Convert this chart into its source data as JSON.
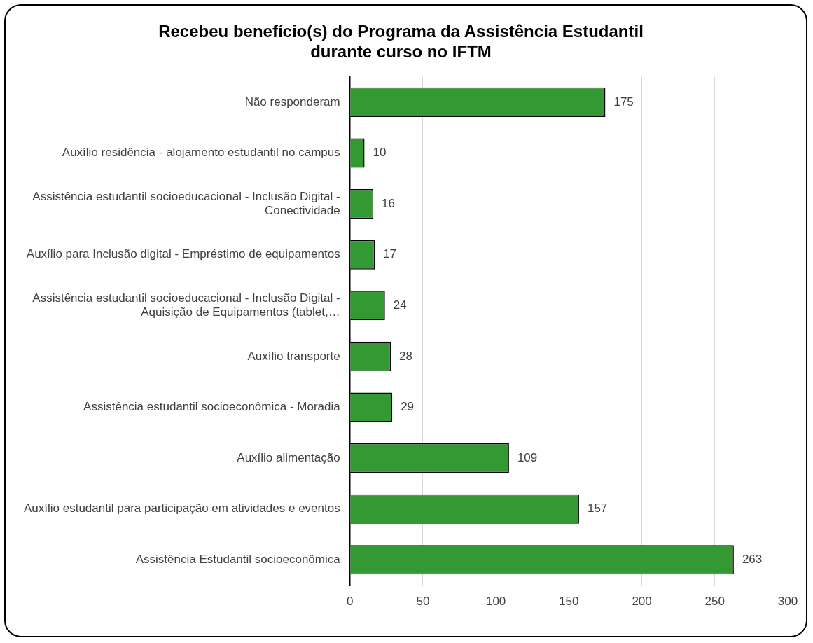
{
  "chart_data": {
    "type": "bar",
    "orientation": "horizontal",
    "title": "Recebeu benefício(s) do Programa da Assistência Estudantil durante curso no IFTM",
    "categories": [
      "Não responderam",
      "Auxílio residência - alojamento estudantil no campus",
      "Assistência estudantil socioeducacional - Inclusão Digital - Conectividade",
      "Auxílio para Inclusão digital - Empréstimo de equipamentos",
      "Assistência estudantil socioeducacional - Inclusão Digital - Aquisição de Equipamentos (tablet,…",
      "Auxílio transporte",
      "Assistência estudantil socioeconômica - Moradia",
      "Auxílio alimentação",
      "Auxílio estudantil para participação em atividades e eventos",
      "Assistência Estudantil socioeconômica"
    ],
    "values": [
      175,
      10,
      16,
      17,
      24,
      28,
      29,
      109,
      157,
      263
    ],
    "color": "#339933",
    "xlim": [
      0,
      300
    ],
    "xticks": [
      0,
      50,
      100,
      150,
      200,
      250,
      300
    ],
    "grid": "x",
    "legend": false,
    "data_labels": true
  }
}
